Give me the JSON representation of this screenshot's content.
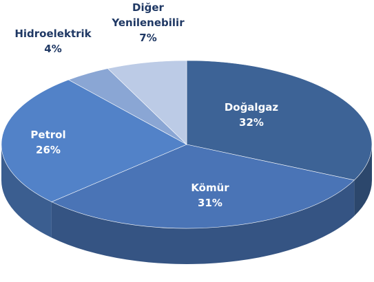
{
  "chart_data": {
    "type": "pie3d",
    "categories": [
      "Doğalgaz",
      "Kömür",
      "Petrol",
      "Hidroelektrik",
      "Diğer Yenilenebilir"
    ],
    "values": [
      32,
      31,
      26,
      4,
      7
    ],
    "value_labels": [
      "32%",
      "31%",
      "26%",
      "4%",
      "7%"
    ],
    "colors": [
      "#3d6396",
      "#4a74b6",
      "#5282c8",
      "#8aa6d4",
      "#bccbe6"
    ]
  }
}
